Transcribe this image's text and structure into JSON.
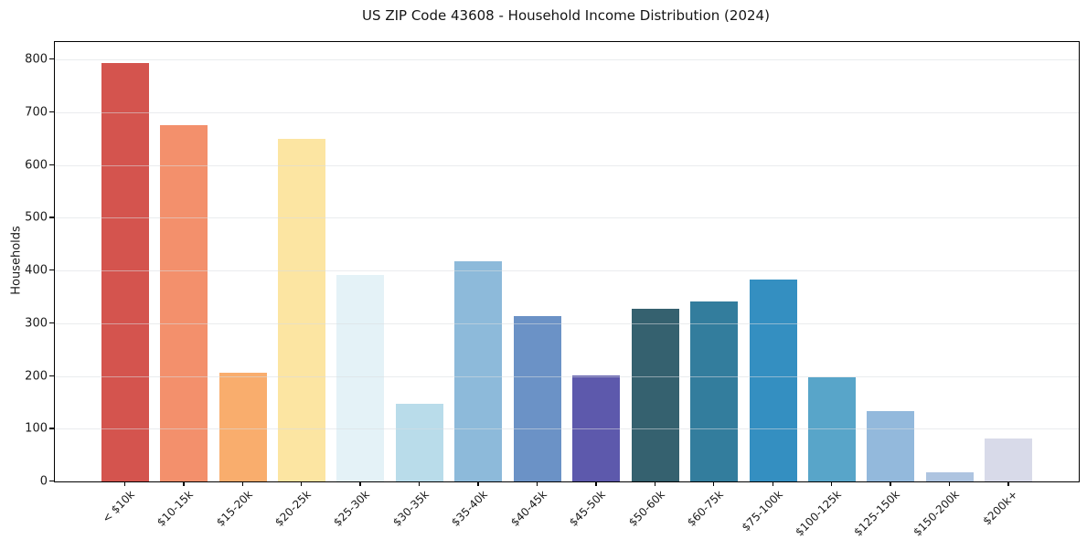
{
  "chart_data": {
    "type": "bar",
    "title": "US ZIP Code 43608 - Household Income Distribution (2024)",
    "xlabel": "",
    "ylabel": "Households",
    "categories": [
      "< $10k",
      "$10-15k",
      "$15-20k",
      "$20-25k",
      "$25-30k",
      "$30-35k",
      "$35-40k",
      "$40-45k",
      "$45-50k",
      "$50-60k",
      "$60-75k",
      "$75-100k",
      "$100-125k",
      "$125-150k",
      "$150-200k",
      "$200k+"
    ],
    "values": [
      794,
      675,
      206,
      650,
      392,
      147,
      417,
      313,
      201,
      328,
      341,
      382,
      197,
      133,
      17,
      82
    ],
    "bar_colors": [
      "#d4544e",
      "#f3906c",
      "#f9ad6d",
      "#fce5a2",
      "#e4f2f7",
      "#b9dcea",
      "#8dbada",
      "#6b92c6",
      "#5d59ac",
      "#35616f",
      "#337d9d",
      "#348fc1",
      "#58a5c9",
      "#93b9dc",
      "#aec4e0",
      "#d8dae9"
    ],
    "ylim": [
      0,
      833
    ],
    "yticks": [
      0,
      100,
      200,
      300,
      400,
      500,
      600,
      700,
      800
    ],
    "grid": "horizontal",
    "legend": "none",
    "x_tick_rotation_deg": 45,
    "spine_color": "#000000",
    "gridline_color": "#e6e8ea",
    "background_color": "#ffffff"
  }
}
